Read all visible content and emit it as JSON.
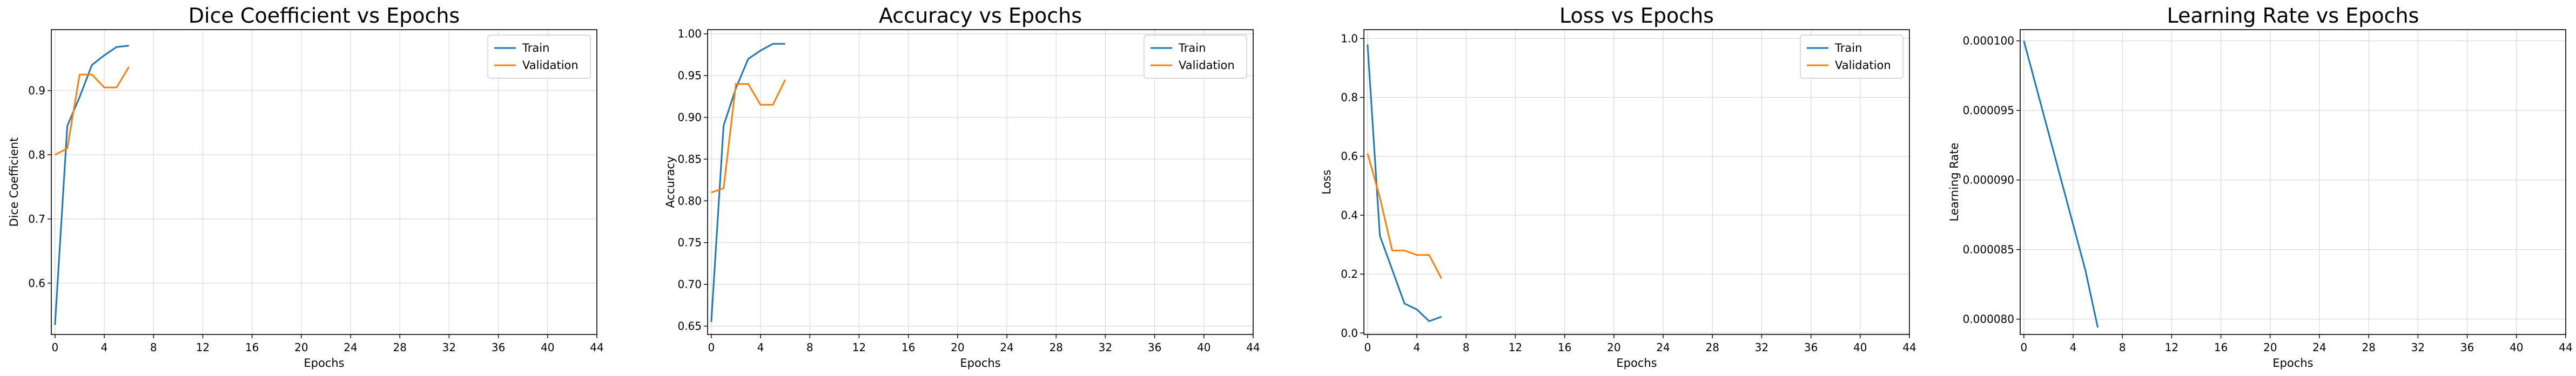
{
  "colors": {
    "train": "#1f77b4",
    "validation": "#ff7f0e",
    "grid": "#d9d9d9"
  },
  "chart_data": [
    {
      "type": "line",
      "title": "Dice Coefficient vs Epochs",
      "xlabel": "Epochs",
      "ylabel": "Dice Coefficient",
      "xlim": [
        -0.3,
        44
      ],
      "ylim": [
        0.52,
        0.995
      ],
      "xticks": [
        0,
        4,
        8,
        12,
        16,
        20,
        24,
        28,
        32,
        36,
        40,
        44
      ],
      "yticks": [
        0.6,
        0.7,
        0.8,
        0.9
      ],
      "ytick_labels": [
        "0.6",
        "0.7",
        "0.8",
        "0.9"
      ],
      "grid": true,
      "legend": "top-right",
      "series": [
        {
          "name": "Train",
          "color": "#1f77b4",
          "x": [
            0,
            1,
            2,
            3,
            4,
            5,
            6
          ],
          "y": [
            0.535,
            0.845,
            0.89,
            0.94,
            0.955,
            0.968,
            0.97
          ]
        },
        {
          "name": "Validation",
          "color": "#ff7f0e",
          "x": [
            0,
            1,
            2,
            3,
            4,
            5,
            6
          ],
          "y": [
            0.8,
            0.81,
            0.925,
            0.925,
            0.905,
            0.905,
            0.937
          ]
        }
      ]
    },
    {
      "type": "line",
      "title": "Accuracy vs Epochs",
      "xlabel": "Epochs",
      "ylabel": "Accuracy",
      "xlim": [
        -0.3,
        44
      ],
      "ylim": [
        0.64,
        1.005
      ],
      "xticks": [
        0,
        4,
        8,
        12,
        16,
        20,
        24,
        28,
        32,
        36,
        40,
        44
      ],
      "yticks": [
        0.65,
        0.7,
        0.75,
        0.8,
        0.85,
        0.9,
        0.95,
        1.0
      ],
      "ytick_labels": [
        "0.65",
        "0.70",
        "0.75",
        "0.80",
        "0.85",
        "0.90",
        "0.95",
        "1.00"
      ],
      "grid": true,
      "legend": "top-right",
      "series": [
        {
          "name": "Train",
          "color": "#1f77b4",
          "x": [
            0,
            1,
            2,
            3,
            4,
            5,
            6
          ],
          "y": [
            0.655,
            0.89,
            0.935,
            0.97,
            0.98,
            0.988,
            0.988
          ]
        },
        {
          "name": "Validation",
          "color": "#ff7f0e",
          "x": [
            0,
            1,
            2,
            3,
            4,
            5,
            6
          ],
          "y": [
            0.81,
            0.815,
            0.94,
            0.94,
            0.915,
            0.915,
            0.945
          ]
        }
      ]
    },
    {
      "type": "line",
      "title": "Loss vs Epochs",
      "xlabel": "Epochs",
      "ylabel": "Loss",
      "xlim": [
        -0.3,
        44
      ],
      "ylim": [
        -0.005,
        1.03
      ],
      "xticks": [
        0,
        4,
        8,
        12,
        16,
        20,
        24,
        28,
        32,
        36,
        40,
        44
      ],
      "yticks": [
        0.0,
        0.2,
        0.4,
        0.6,
        0.8,
        1.0
      ],
      "ytick_labels": [
        "0.0",
        "0.2",
        "0.4",
        "0.6",
        "0.8",
        "1.0"
      ],
      "grid": true,
      "legend": "top-right",
      "series": [
        {
          "name": "Train",
          "color": "#1f77b4",
          "x": [
            0,
            1,
            2,
            3,
            4,
            5,
            6
          ],
          "y": [
            0.98,
            0.33,
            0.215,
            0.1,
            0.08,
            0.04,
            0.055
          ]
        },
        {
          "name": "Validation",
          "color": "#ff7f0e",
          "x": [
            0,
            1,
            2,
            3,
            4,
            5,
            6
          ],
          "y": [
            0.61,
            0.46,
            0.28,
            0.28,
            0.265,
            0.265,
            0.185
          ]
        }
      ]
    },
    {
      "type": "line",
      "title": "Learning Rate vs Epochs",
      "xlabel": "Epochs",
      "ylabel": "Learning Rate",
      "xlim": [
        -0.3,
        44
      ],
      "ylim": [
        7.89e-05,
        0.0001008
      ],
      "xticks": [
        0,
        4,
        8,
        12,
        16,
        20,
        24,
        28,
        32,
        36,
        40,
        44
      ],
      "yticks": [
        8e-05,
        8.5e-05,
        9e-05,
        9.5e-05,
        0.0001
      ],
      "ytick_labels": [
        "0.000080",
        "0.000085",
        "0.000090",
        "0.000095",
        "0.000100"
      ],
      "grid": true,
      "legend": "none",
      "series": [
        {
          "color": "#1f77b4",
          "x": [
            0,
            1,
            2,
            3,
            4,
            5,
            6
          ],
          "y": [
            0.0001,
            9.67e-05,
            9.34e-05,
            9.01e-05,
            8.68e-05,
            8.35e-05,
            7.94e-05
          ]
        }
      ]
    }
  ]
}
